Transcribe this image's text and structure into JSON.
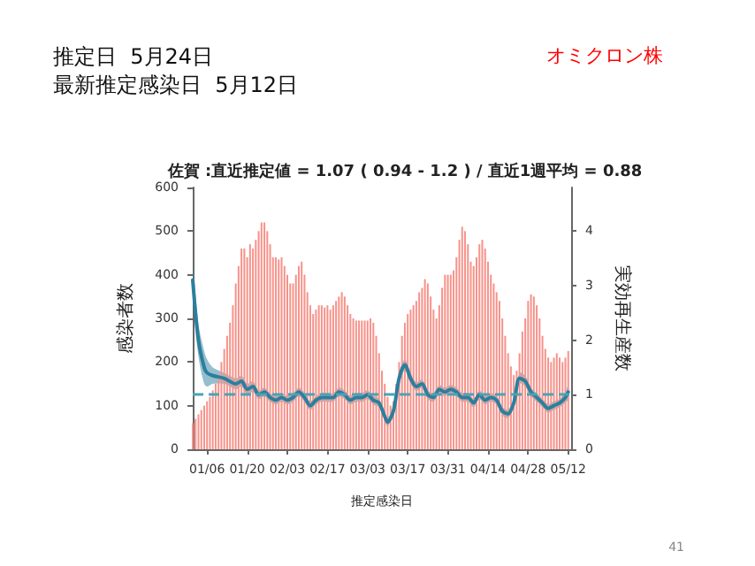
{
  "chart_data": {
    "type": "bar",
    "title": "佐賀 :直近推定値 = 1.07 ( 0.94 - 1.2 ) / 直近1週平均 = 0.88",
    "annotations": [
      "推定日  5月24日",
      "最新推定感染日  5月12日",
      "オミクロン株",
      "41"
    ],
    "xlabel": "推定感染日",
    "ylabel": "感染者数",
    "y2label": "実効再生産数",
    "xlim": [
      "--01-01",
      "--05-13"
    ],
    "xticks": [
      {
        "value": "--01-06",
        "label": "01/06"
      },
      {
        "value": "--01-20",
        "label": "01/20"
      },
      {
        "value": "--02-03",
        "label": "02/03"
      },
      {
        "value": "--02-17",
        "label": "02/17"
      },
      {
        "value": "--03-03",
        "label": "03/03"
      },
      {
        "value": "--03-17",
        "label": "03/17"
      },
      {
        "value": "--03-31",
        "label": "03/31"
      },
      {
        "value": "--04-14",
        "label": "04/14"
      },
      {
        "value": "--04-28",
        "label": "04/28"
      },
      {
        "value": "--05-12",
        "label": "05/12"
      }
    ],
    "ylim": [
      0,
      600
    ],
    "yticks": [
      0,
      100,
      200,
      300,
      400,
      500,
      600
    ],
    "y2lim": [
      0,
      4.8
    ],
    "y2ticks": [
      0,
      1,
      2,
      3,
      4
    ],
    "grid": false,
    "ref_lines": [
      {
        "axis": "y2",
        "value": 1,
        "color": "#4aa3b5",
        "line_style": "dashed"
      }
    ],
    "series": [
      {
        "color": "#f7928a",
        "x": [
          "--01-01",
          "--01-02",
          "--01-03",
          "--01-04",
          "--01-05",
          "--01-06",
          "--01-07",
          "--01-08",
          "--01-09",
          "--01-10",
          "--01-11",
          "--01-12",
          "--01-13",
          "--01-14",
          "--01-15",
          "--01-16",
          "--01-17",
          "--01-18",
          "--01-19",
          "--01-20",
          "--01-21",
          "--01-22",
          "--01-23",
          "--01-24",
          "--01-25",
          "--01-26",
          "--01-27",
          "--01-28",
          "--01-29",
          "--01-30",
          "--01-31",
          "--02-01",
          "--02-02",
          "--02-03",
          "--02-04",
          "--02-05",
          "--02-06",
          "--02-07",
          "--02-08",
          "--02-09",
          "--02-10",
          "--02-11",
          "--02-12",
          "--02-13",
          "--02-14",
          "--02-15",
          "--02-16",
          "--02-17",
          "--02-18",
          "--02-19",
          "--02-20",
          "--02-21",
          "--02-22",
          "--02-23",
          "--02-24",
          "--02-25",
          "--02-26",
          "--02-27",
          "--02-28",
          "--03-01",
          "--03-02",
          "--03-03",
          "--03-04",
          "--03-05",
          "--03-06",
          "--03-07",
          "--03-08",
          "--03-09",
          "--03-10",
          "--03-11",
          "--03-12",
          "--03-13",
          "--03-14",
          "--03-15",
          "--03-16",
          "--03-17",
          "--03-18",
          "--03-19",
          "--03-20",
          "--03-21",
          "--03-22",
          "--03-23",
          "--03-24",
          "--03-25",
          "--03-26",
          "--03-27",
          "--03-28",
          "--03-29",
          "--03-30",
          "--03-31",
          "--04-01",
          "--04-02",
          "--04-03",
          "--04-04",
          "--04-05",
          "--04-06",
          "--04-07",
          "--04-08",
          "--04-09",
          "--04-10",
          "--04-11",
          "--04-12",
          "--04-13",
          "--04-14",
          "--04-15",
          "--04-16",
          "--04-17",
          "--04-18",
          "--04-19",
          "--04-20",
          "--04-21",
          "--04-22",
          "--04-23",
          "--04-24",
          "--04-25",
          "--04-26",
          "--04-27",
          "--04-28",
          "--04-29",
          "--04-30",
          "--05-01",
          "--05-02",
          "--05-03",
          "--05-04",
          "--05-05",
          "--05-06",
          "--05-07",
          "--05-08",
          "--05-09",
          "--05-10",
          "--05-11",
          "--05-12"
        ],
        "values": [
          60,
          70,
          80,
          90,
          100,
          110,
          120,
          135,
          150,
          170,
          200,
          230,
          260,
          290,
          330,
          380,
          420,
          460,
          460,
          440,
          470,
          460,
          480,
          500,
          520,
          520,
          500,
          470,
          440,
          440,
          435,
          440,
          420,
          400,
          380,
          380,
          400,
          420,
          430,
          400,
          360,
          330,
          310,
          320,
          330,
          330,
          325,
          330,
          320,
          330,
          340,
          350,
          360,
          350,
          330,
          310,
          300,
          295,
          295,
          295,
          295,
          295,
          300,
          290,
          260,
          220,
          180,
          150,
          120,
          100,
          110,
          150,
          200,
          260,
          290,
          310,
          320,
          330,
          340,
          360,
          370,
          390,
          380,
          350,
          320,
          300,
          330,
          370,
          400,
          400,
          400,
          410,
          440,
          480,
          510,
          500,
          470,
          430,
          420,
          440,
          470,
          480,
          460,
          430,
          400,
          380,
          360,
          340,
          300,
          260,
          220,
          190,
          170,
          180,
          220,
          270,
          300,
          340,
          355,
          350,
          330,
          300,
          260,
          230,
          210,
          200,
          210,
          220,
          210,
          200,
          210,
          225
        ]
      },
      {
        "type": "line",
        "axis": "y2",
        "color": "#2b7f9e",
        "marker": "none",
        "line_style": "solid",
        "x": [
          "--01-01",
          "--01-03",
          "--01-05",
          "--01-06",
          "--01-08",
          "--01-12",
          "--01-16",
          "--01-18",
          "--01-20",
          "--01-22",
          "--01-24",
          "--01-26",
          "--01-28",
          "--01-30",
          "--02-01",
          "--02-03",
          "--02-05",
          "--02-07",
          "--02-09",
          "--02-11",
          "--02-13",
          "--02-15",
          "--02-17",
          "--02-19",
          "--02-21",
          "--02-23",
          "--02-25",
          "--02-27",
          "--03-01",
          "--03-03",
          "--03-05",
          "--03-07",
          "--03-09",
          "--03-10",
          "--03-12",
          "--03-14",
          "--03-16",
          "--03-18",
          "--03-20",
          "--03-22",
          "--03-24",
          "--03-26",
          "--03-28",
          "--03-30",
          "--04-01",
          "--04-03",
          "--04-05",
          "--04-07",
          "--04-09",
          "--04-11",
          "--04-13",
          "--04-15",
          "--04-17",
          "--04-19",
          "--04-21",
          "--04-23",
          "--04-25",
          "--04-27",
          "--04-29",
          "--05-01",
          "--05-03",
          "--05-05",
          "--05-07",
          "--05-09",
          "--05-11",
          "--05-12"
        ],
        "values": [
          3.1,
          2.0,
          1.5,
          1.4,
          1.35,
          1.3,
          1.2,
          1.25,
          1.1,
          1.15,
          1.0,
          1.05,
          0.95,
          0.9,
          0.95,
          0.9,
          0.95,
          1.05,
          0.95,
          0.8,
          0.9,
          0.95,
          0.95,
          0.95,
          1.05,
          1.0,
          0.9,
          0.95,
          0.95,
          1.0,
          0.9,
          0.85,
          0.6,
          0.5,
          0.7,
          1.3,
          1.55,
          1.3,
          1.15,
          1.2,
          1.0,
          0.95,
          1.1,
          1.05,
          1.1,
          1.05,
          0.95,
          0.95,
          0.85,
          1.0,
          0.9,
          0.95,
          0.9,
          0.7,
          0.65,
          0.85,
          1.3,
          1.25,
          1.05,
          0.95,
          0.85,
          0.75,
          0.8,
          0.85,
          0.95,
          1.05
        ],
        "lower": [
          2.8,
          1.7,
          1.2,
          1.15,
          1.2,
          1.2,
          1.1,
          1.15,
          1.0,
          1.05,
          0.92,
          0.97,
          0.87,
          0.82,
          0.87,
          0.82,
          0.87,
          0.97,
          0.87,
          0.72,
          0.82,
          0.87,
          0.87,
          0.87,
          0.97,
          0.92,
          0.82,
          0.87,
          0.87,
          0.92,
          0.82,
          0.77,
          0.52,
          0.42,
          0.62,
          1.2,
          1.45,
          1.2,
          1.07,
          1.12,
          0.92,
          0.87,
          1.02,
          0.97,
          1.02,
          0.97,
          0.87,
          0.87,
          0.77,
          0.92,
          0.82,
          0.87,
          0.82,
          0.62,
          0.57,
          0.77,
          1.2,
          1.15,
          0.97,
          0.87,
          0.77,
          0.67,
          0.72,
          0.77,
          0.85,
          0.92
        ],
        "upper": [
          3.4,
          2.3,
          1.8,
          1.65,
          1.5,
          1.4,
          1.3,
          1.35,
          1.2,
          1.25,
          1.08,
          1.13,
          1.03,
          0.98,
          1.03,
          0.98,
          1.03,
          1.13,
          1.03,
          0.88,
          0.98,
          1.03,
          1.03,
          1.03,
          1.13,
          1.08,
          0.98,
          1.03,
          1.03,
          1.08,
          0.98,
          0.93,
          0.68,
          0.58,
          0.78,
          1.4,
          1.65,
          1.4,
          1.23,
          1.28,
          1.08,
          1.03,
          1.18,
          1.13,
          1.18,
          1.13,
          1.03,
          1.03,
          0.93,
          1.08,
          0.98,
          1.03,
          0.98,
          0.78,
          0.73,
          0.93,
          1.4,
          1.35,
          1.13,
          1.03,
          0.93,
          0.83,
          0.88,
          0.93,
          1.05,
          1.18
        ]
      }
    ]
  }
}
